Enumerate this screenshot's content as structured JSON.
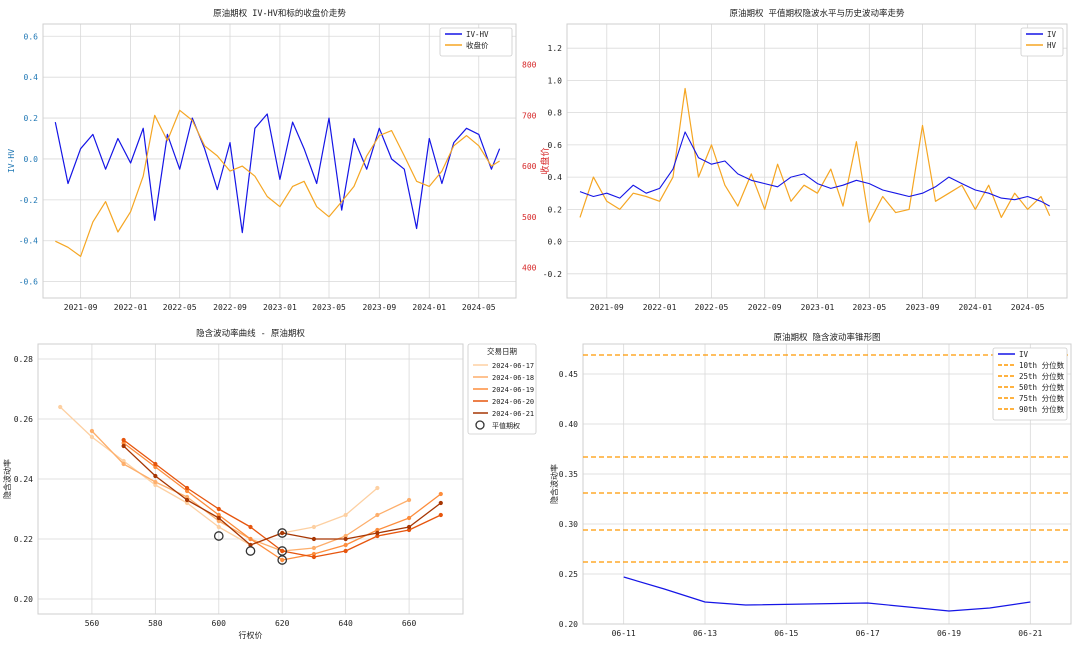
{
  "colors": {
    "iv": "#1515e6",
    "hv": "#f5a623",
    "close": "#f5a623",
    "cone": "#ff9900",
    "grid": "#d9d9d9",
    "axis_red": "#d62728",
    "axis_blue": "#1f77b4"
  },
  "chart_data": [
    {
      "type": "line",
      "title": "原油期权 IV-HV和标的收盘价走势",
      "ylabel": "IV-HV",
      "ylabel_right": "收盘价",
      "xlim": [
        "2021-06-01",
        "2024-07-31"
      ],
      "ylim": [
        -0.68,
        0.66
      ],
      "ylim_right": [
        340,
        880
      ],
      "x_ticks": [
        "2021-09",
        "2022-01",
        "2022-05",
        "2022-09",
        "2023-01",
        "2023-05",
        "2023-09",
        "2024-01",
        "2024-05"
      ],
      "y_ticks": [
        -0.6,
        -0.4,
        -0.2,
        0.0,
        0.2,
        0.4,
        0.6
      ],
      "y_ticks_right": [
        400,
        500,
        600,
        700,
        800
      ],
      "grid": true,
      "legend": "top-right",
      "series": [
        {
          "name": "IV-HV",
          "axis": "left",
          "x": [
            "2021-07-01",
            "2021-08-01",
            "2021-09-01",
            "2021-10-01",
            "2021-11-01",
            "2021-12-01",
            "2022-01-01",
            "2022-02-01",
            "2022-03-01",
            "2022-04-01",
            "2022-05-01",
            "2022-06-01",
            "2022-07-01",
            "2022-08-01",
            "2022-09-01",
            "2022-10-01",
            "2022-11-01",
            "2022-12-01",
            "2023-01-01",
            "2023-02-01",
            "2023-03-01",
            "2023-04-01",
            "2023-05-01",
            "2023-06-01",
            "2023-07-01",
            "2023-08-01",
            "2023-09-01",
            "2023-10-01",
            "2023-11-01",
            "2023-12-01",
            "2024-01-01",
            "2024-02-01",
            "2024-03-01",
            "2024-04-01",
            "2024-05-01",
            "2024-06-01",
            "2024-06-21"
          ],
          "values": [
            0.18,
            -0.12,
            0.05,
            0.12,
            -0.05,
            0.1,
            -0.02,
            0.15,
            -0.3,
            0.12,
            -0.05,
            0.2,
            0.05,
            -0.15,
            0.08,
            -0.36,
            0.15,
            0.22,
            -0.1,
            0.18,
            0.05,
            -0.12,
            0.2,
            -0.25,
            0.1,
            -0.05,
            0.15,
            0.0,
            -0.05,
            -0.34,
            0.1,
            -0.12,
            0.08,
            0.15,
            0.12,
            -0.05,
            0.05
          ]
        },
        {
          "name": "收盘价",
          "axis": "right",
          "x": [
            "2021-07-01",
            "2021-08-01",
            "2021-09-01",
            "2021-10-01",
            "2021-11-01",
            "2021-12-01",
            "2022-01-01",
            "2022-02-01",
            "2022-03-01",
            "2022-04-01",
            "2022-05-01",
            "2022-06-01",
            "2022-07-01",
            "2022-08-01",
            "2022-09-01",
            "2022-10-01",
            "2022-11-01",
            "2022-12-01",
            "2023-01-01",
            "2023-02-01",
            "2023-03-01",
            "2023-04-01",
            "2023-05-01",
            "2023-06-01",
            "2023-07-01",
            "2023-08-01",
            "2023-09-01",
            "2023-10-01",
            "2023-11-01",
            "2023-12-01",
            "2024-01-01",
            "2024-02-01",
            "2024-03-01",
            "2024-04-01",
            "2024-05-01",
            "2024-06-01",
            "2024-06-21"
          ],
          "values": [
            452,
            440,
            422,
            490,
            530,
            470,
            510,
            580,
            700,
            650,
            710,
            690,
            640,
            620,
            590,
            600,
            580,
            540,
            520,
            560,
            570,
            520,
            500,
            530,
            560,
            620,
            660,
            670,
            620,
            570,
            560,
            590,
            640,
            660,
            640,
            600,
            610
          ]
        }
      ]
    },
    {
      "type": "line",
      "title": "原油期权 平值期权隐波水平与历史波动率走势",
      "xlim": [
        "2021-06-01",
        "2024-07-31"
      ],
      "ylim": [
        -0.35,
        1.35
      ],
      "x_ticks": [
        "2021-09",
        "2022-01",
        "2022-05",
        "2022-09",
        "2023-01",
        "2023-05",
        "2023-09",
        "2024-01",
        "2024-05"
      ],
      "y_ticks": [
        -0.2,
        0.0,
        0.2,
        0.4,
        0.6,
        0.8,
        1.0,
        1.2
      ],
      "grid": true,
      "legend": "top-right",
      "series": [
        {
          "name": "IV",
          "x": [
            "2021-07-01",
            "2021-08-01",
            "2021-09-01",
            "2021-10-01",
            "2021-11-01",
            "2021-12-01",
            "2022-01-01",
            "2022-02-01",
            "2022-03-01",
            "2022-04-01",
            "2022-05-01",
            "2022-06-01",
            "2022-07-01",
            "2022-08-01",
            "2022-09-01",
            "2022-10-01",
            "2022-11-01",
            "2022-12-01",
            "2023-01-01",
            "2023-02-01",
            "2023-03-01",
            "2023-04-01",
            "2023-05-01",
            "2023-06-01",
            "2023-07-01",
            "2023-08-01",
            "2023-09-01",
            "2023-10-01",
            "2023-11-01",
            "2023-12-01",
            "2024-01-01",
            "2024-02-01",
            "2024-03-01",
            "2024-04-01",
            "2024-05-01",
            "2024-06-01",
            "2024-06-21"
          ],
          "values": [
            0.31,
            0.28,
            0.3,
            0.27,
            0.35,
            0.3,
            0.33,
            0.45,
            0.68,
            0.52,
            0.48,
            0.5,
            0.42,
            0.38,
            0.36,
            0.34,
            0.4,
            0.42,
            0.36,
            0.33,
            0.35,
            0.38,
            0.36,
            0.32,
            0.3,
            0.28,
            0.3,
            0.34,
            0.4,
            0.36,
            0.32,
            0.3,
            0.27,
            0.26,
            0.28,
            0.25,
            0.22
          ]
        },
        {
          "name": "HV",
          "x": [
            "2021-07-01",
            "2021-08-01",
            "2021-09-01",
            "2021-10-01",
            "2021-11-01",
            "2021-12-01",
            "2022-01-01",
            "2022-02-01",
            "2022-03-01",
            "2022-04-01",
            "2022-05-01",
            "2022-06-01",
            "2022-07-01",
            "2022-08-01",
            "2022-09-01",
            "2022-10-01",
            "2022-11-01",
            "2022-12-01",
            "2023-01-01",
            "2023-02-01",
            "2023-03-01",
            "2023-04-01",
            "2023-05-01",
            "2023-06-01",
            "2023-07-01",
            "2023-08-01",
            "2023-09-01",
            "2023-10-01",
            "2023-11-01",
            "2023-12-01",
            "2024-01-01",
            "2024-02-01",
            "2024-03-01",
            "2024-04-01",
            "2024-05-01",
            "2024-06-01",
            "2024-06-21"
          ],
          "values": [
            0.15,
            0.4,
            0.25,
            0.2,
            0.3,
            0.28,
            0.25,
            0.4,
            0.95,
            0.4,
            0.6,
            0.35,
            0.22,
            0.42,
            0.2,
            0.48,
            0.25,
            0.35,
            0.3,
            0.45,
            0.22,
            0.62,
            0.12,
            0.28,
            0.18,
            0.2,
            0.72,
            0.25,
            0.3,
            0.35,
            0.2,
            0.35,
            0.15,
            0.3,
            0.2,
            0.28,
            0.16
          ]
        }
      ]
    },
    {
      "type": "line",
      "title": "隐含波动率曲线 - 原油期权",
      "xlabel": "行权价",
      "ylabel": "隐含波动率",
      "xlim": [
        543,
        677
      ],
      "ylim": [
        0.195,
        0.285
      ],
      "x_ticks": [
        560,
        580,
        600,
        620,
        640,
        660
      ],
      "y_ticks": [
        0.2,
        0.22,
        0.24,
        0.26,
        0.28
      ],
      "grid": true,
      "legend_title": "交易日期",
      "legend": "upper-right-outside",
      "atm_label": "平值期权",
      "series": [
        {
          "name": "2024-06-17",
          "color": "#fdd0a2",
          "x": [
            550,
            560,
            570,
            580,
            590,
            600,
            610,
            620,
            630,
            640,
            650
          ],
          "values": [
            0.264,
            0.254,
            0.246,
            0.238,
            0.232,
            0.224,
            0.218,
            0.222,
            0.224,
            0.228,
            0.237
          ]
        },
        {
          "name": "2024-06-18",
          "color": "#fdae6b",
          "x": [
            560,
            570,
            580,
            590,
            600,
            610,
            620,
            630,
            640,
            650,
            660
          ],
          "values": [
            0.256,
            0.245,
            0.239,
            0.234,
            0.226,
            0.22,
            0.216,
            0.217,
            0.221,
            0.228,
            0.233
          ]
        },
        {
          "name": "2024-06-19",
          "color": "#fd8d3c",
          "x": [
            570,
            580,
            590,
            600,
            610,
            620,
            630,
            640,
            650,
            660,
            670
          ],
          "values": [
            0.252,
            0.244,
            0.236,
            0.228,
            0.22,
            0.213,
            0.215,
            0.218,
            0.223,
            0.227,
            0.235
          ]
        },
        {
          "name": "2024-06-20",
          "color": "#e6550d",
          "x": [
            570,
            580,
            590,
            600,
            610,
            620,
            630,
            640,
            650,
            660,
            670
          ],
          "values": [
            0.253,
            0.245,
            0.237,
            0.23,
            0.224,
            0.216,
            0.214,
            0.216,
            0.221,
            0.223,
            0.228
          ]
        },
        {
          "name": "2024-06-21",
          "color": "#a63603",
          "x": [
            570,
            580,
            590,
            600,
            610,
            620,
            630,
            640,
            650,
            660,
            670
          ],
          "values": [
            0.251,
            0.241,
            0.233,
            0.227,
            0.218,
            0.222,
            0.22,
            0.22,
            0.222,
            0.224,
            0.232
          ]
        }
      ],
      "atm_points": [
        {
          "x": 600,
          "y": 0.221
        },
        {
          "x": 610,
          "y": 0.216
        },
        {
          "x": 620,
          "y": 0.222
        },
        {
          "x": 620,
          "y": 0.216
        },
        {
          "x": 620,
          "y": 0.213
        }
      ]
    },
    {
      "type": "line",
      "title": "原油期权 隐含波动率锥形图",
      "ylabel": "隐含波动率",
      "xlim": [
        "2024-06-10",
        "2024-06-22"
      ],
      "ylim": [
        0.2,
        0.48
      ],
      "x_ticks": [
        "06-11",
        "06-13",
        "06-15",
        "06-17",
        "06-19",
        "06-21"
      ],
      "y_ticks": [
        0.2,
        0.25,
        0.3,
        0.35,
        0.4,
        0.45
      ],
      "grid": true,
      "legend": "top-right",
      "series": [
        {
          "name": "IV",
          "x": [
            "2024-06-11",
            "2024-06-12",
            "2024-06-13",
            "2024-06-14",
            "2024-06-17",
            "2024-06-18",
            "2024-06-19",
            "2024-06-20",
            "2024-06-21"
          ],
          "values": [
            0.247,
            0.235,
            0.222,
            0.219,
            0.221,
            0.217,
            0.213,
            0.216,
            0.222
          ]
        }
      ],
      "percentiles": [
        {
          "name": "10th 分位数",
          "value": 0.262
        },
        {
          "name": "25th 分位数",
          "value": 0.294
        },
        {
          "name": "50th 分位数",
          "value": 0.331
        },
        {
          "name": "75th 分位数",
          "value": 0.367
        },
        {
          "name": "90th 分位数",
          "value": 0.469
        }
      ]
    }
  ]
}
